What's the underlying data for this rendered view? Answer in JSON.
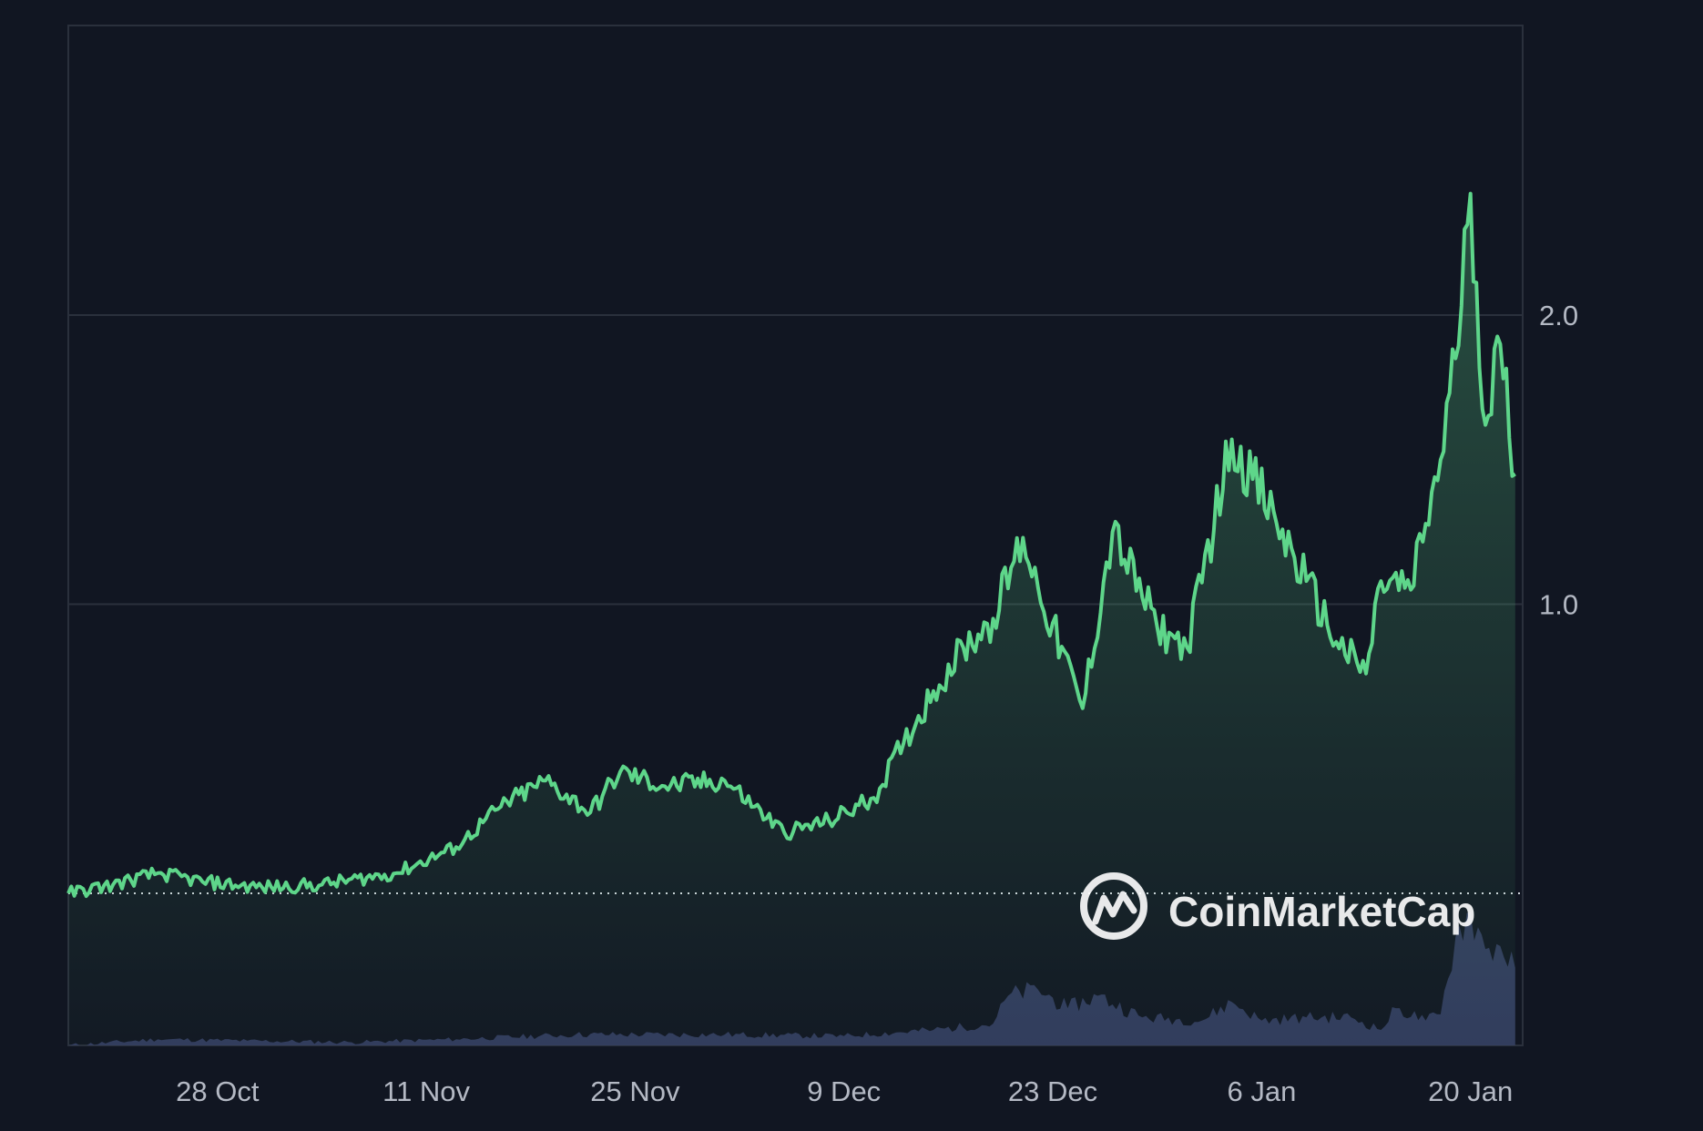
{
  "chart_data": {
    "type": "area",
    "x_tick_labels": [
      "28 Oct",
      "11 Nov",
      "25 Nov",
      "9 Dec",
      "23 Dec",
      "6 Jan",
      "20 Jan"
    ],
    "y_tick_labels": [
      "1.0",
      "2.0"
    ],
    "y_ticks": [
      1.0,
      2.0
    ],
    "ylim": [
      0.0,
      3.0
    ],
    "baseline_value": 0.0,
    "grid": true,
    "price_points": [
      [
        "2024-10-18",
        0.0
      ],
      [
        "2024-10-21",
        0.03
      ],
      [
        "2024-10-24",
        0.07
      ],
      [
        "2024-10-27",
        0.04
      ],
      [
        "2024-10-31",
        0.02
      ],
      [
        "2024-11-04",
        0.03
      ],
      [
        "2024-11-09",
        0.07
      ],
      [
        "2024-11-13",
        0.16
      ],
      [
        "2024-11-16",
        0.3
      ],
      [
        "2024-11-19",
        0.39
      ],
      [
        "2024-11-22",
        0.28
      ],
      [
        "2024-11-24",
        0.42
      ],
      [
        "2024-11-27",
        0.37
      ],
      [
        "2024-12-01",
        0.39
      ],
      [
        "2024-12-03",
        0.3
      ],
      [
        "2024-12-05",
        0.21
      ],
      [
        "2024-12-08",
        0.25
      ],
      [
        "2024-12-11",
        0.33
      ],
      [
        "2024-12-13",
        0.52
      ],
      [
        "2024-12-15",
        0.7
      ],
      [
        "2024-12-17",
        0.85
      ],
      [
        "2024-12-19",
        0.95
      ],
      [
        "2024-12-21",
        1.23
      ],
      [
        "2024-12-22",
        1.06
      ],
      [
        "2024-12-25",
        0.64
      ],
      [
        "2024-12-27",
        1.25
      ],
      [
        "2024-12-30",
        0.92
      ],
      [
        "2025-01-01",
        0.85
      ],
      [
        "2025-01-04",
        1.57
      ],
      [
        "2025-01-07",
        1.28
      ],
      [
        "2025-01-09",
        1.08
      ],
      [
        "2025-01-11",
        0.87
      ],
      [
        "2025-01-13",
        0.76
      ],
      [
        "2025-01-14",
        1.08
      ],
      [
        "2025-01-16",
        1.05
      ],
      [
        "2025-01-18",
        1.5
      ],
      [
        "2025-01-19",
        1.85
      ],
      [
        "2025-01-20",
        2.42
      ],
      [
        "2025-01-21",
        1.62
      ],
      [
        "2025-01-22",
        1.9
      ],
      [
        "2025-01-23",
        1.45
      ]
    ],
    "volume_points": [
      [
        "2024-10-18",
        0.0
      ],
      [
        "2024-10-24",
        0.2
      ],
      [
        "2024-10-30",
        0.15
      ],
      [
        "2024-11-06",
        0.1
      ],
      [
        "2024-11-13",
        0.2
      ],
      [
        "2024-11-21",
        0.35
      ],
      [
        "2024-12-01",
        0.35
      ],
      [
        "2024-12-09",
        0.3
      ],
      [
        "2024-12-15",
        0.5
      ],
      [
        "2024-12-19",
        0.7
      ],
      [
        "2024-12-20",
        1.6
      ],
      [
        "2024-12-22",
        1.8
      ],
      [
        "2024-12-24",
        1.2
      ],
      [
        "2024-12-26",
        1.6
      ],
      [
        "2024-12-29",
        0.9
      ],
      [
        "2025-01-02",
        0.8
      ],
      [
        "2025-01-04",
        1.4
      ],
      [
        "2025-01-06",
        0.8
      ],
      [
        "2025-01-09",
        0.9
      ],
      [
        "2025-01-12",
        0.9
      ],
      [
        "2025-01-14",
        0.5
      ],
      [
        "2025-01-15",
        1.2
      ],
      [
        "2025-01-17",
        0.8
      ],
      [
        "2025-01-18",
        1.0
      ],
      [
        "2025-01-19",
        3.5
      ],
      [
        "2025-01-20",
        4.3
      ],
      [
        "2025-01-21",
        3.1
      ],
      [
        "2025-01-22",
        3.2
      ],
      [
        "2025-01-23",
        2.5
      ]
    ]
  },
  "watermark": {
    "text": "CoinMarketCap"
  },
  "colors": {
    "background": "#111622",
    "line": "#5ed68a",
    "grid": "#2a303c",
    "volume": "#343c60",
    "tick_text": "#b4b9c4"
  }
}
